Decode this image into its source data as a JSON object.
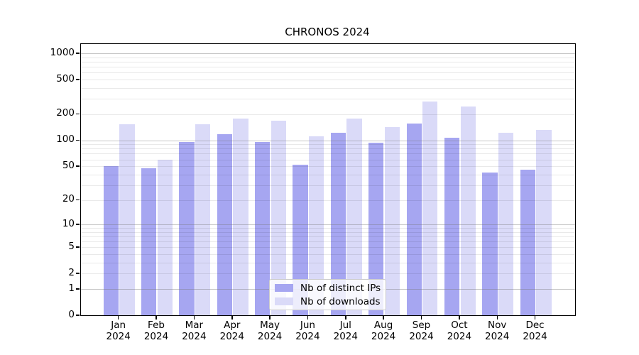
{
  "title": "CHRONOS 2024",
  "chart_data": {
    "type": "bar",
    "title": "CHRONOS 2024",
    "categories": [
      "Jan 2024",
      "Feb 2024",
      "Mar 2024",
      "Apr 2024",
      "May 2024",
      "Jun 2024",
      "Jul 2024",
      "Aug 2024",
      "Sep 2024",
      "Oct 2024",
      "Nov 2024",
      "Dec 2024"
    ],
    "series": [
      {
        "name": "Nb of distinct IPs",
        "color": "#a6a6f1",
        "values": [
          50,
          47,
          96,
          117,
          96,
          52,
          123,
          94,
          155,
          108,
          42,
          46
        ]
      },
      {
        "name": "Nb of downloads",
        "color": "#dadaf8",
        "values": [
          152,
          59,
          153,
          179,
          168,
          111,
          178,
          143,
          278,
          245,
          122,
          132
        ]
      }
    ],
    "xlabel": "",
    "ylabel": "",
    "yscale": "symlog",
    "yticks": [
      0,
      1,
      2,
      5,
      10,
      20,
      50,
      100,
      200,
      500,
      1000
    ],
    "ymax": 1280,
    "grid": "horizontal major+minor",
    "legend_position": "lower center"
  }
}
